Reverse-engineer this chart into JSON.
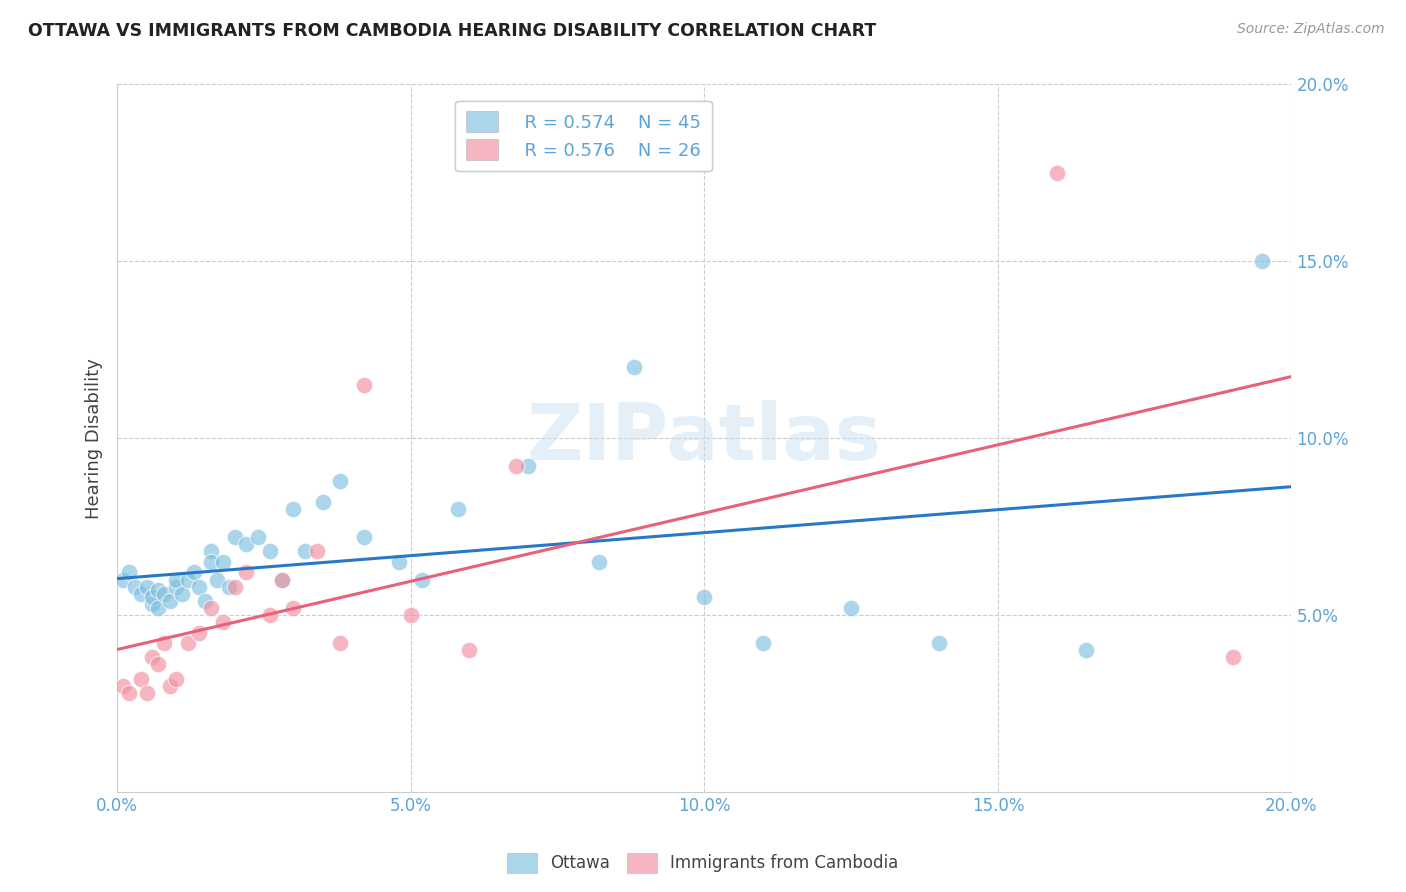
{
  "title": "OTTAWA VS IMMIGRANTS FROM CAMBODIA HEARING DISABILITY CORRELATION CHART",
  "source": "Source: ZipAtlas.com",
  "ylabel": "Hearing Disability",
  "xlim": [
    0.0,
    0.2
  ],
  "ylim": [
    0.0,
    0.2
  ],
  "xticks": [
    0.0,
    0.05,
    0.1,
    0.15,
    0.2
  ],
  "yticks": [
    0.05,
    0.1,
    0.15,
    0.2
  ],
  "xticklabels": [
    "0.0%",
    "5.0%",
    "10.0%",
    "15.0%",
    "20.0%"
  ],
  "yticklabels": [
    "5.0%",
    "10.0%",
    "15.0%",
    "20.0%"
  ],
  "ottawa_color": "#7fbfdf",
  "cambodia_color": "#f090a0",
  "trend_blue": "#2878c8",
  "trend_pink": "#e8607a",
  "watermark_color": "#cce0f0",
  "legend_r1": "R = 0.574",
  "legend_n1": "N = 45",
  "legend_r2": "R = 0.576",
  "legend_n2": "N = 26",
  "ottawa_x": [
    0.001,
    0.002,
    0.003,
    0.004,
    0.005,
    0.006,
    0.006,
    0.007,
    0.007,
    0.008,
    0.009,
    0.01,
    0.01,
    0.011,
    0.012,
    0.013,
    0.014,
    0.015,
    0.016,
    0.016,
    0.017,
    0.018,
    0.019,
    0.02,
    0.022,
    0.024,
    0.026,
    0.028,
    0.03,
    0.032,
    0.035,
    0.038,
    0.042,
    0.048,
    0.052,
    0.058,
    0.07,
    0.082,
    0.088,
    0.1,
    0.11,
    0.125,
    0.14,
    0.165,
    0.195
  ],
  "ottawa_y": [
    0.06,
    0.062,
    0.058,
    0.056,
    0.058,
    0.053,
    0.055,
    0.052,
    0.057,
    0.056,
    0.054,
    0.058,
    0.06,
    0.056,
    0.06,
    0.062,
    0.058,
    0.054,
    0.068,
    0.065,
    0.06,
    0.065,
    0.058,
    0.072,
    0.07,
    0.072,
    0.068,
    0.06,
    0.08,
    0.068,
    0.082,
    0.088,
    0.072,
    0.065,
    0.06,
    0.08,
    0.092,
    0.065,
    0.12,
    0.055,
    0.042,
    0.052,
    0.042,
    0.04,
    0.15
  ],
  "cambodia_x": [
    0.001,
    0.002,
    0.004,
    0.005,
    0.006,
    0.007,
    0.008,
    0.009,
    0.01,
    0.012,
    0.014,
    0.016,
    0.018,
    0.02,
    0.022,
    0.026,
    0.028,
    0.03,
    0.034,
    0.038,
    0.042,
    0.05,
    0.06,
    0.068,
    0.16,
    0.19
  ],
  "cambodia_y": [
    0.03,
    0.028,
    0.032,
    0.028,
    0.038,
    0.036,
    0.042,
    0.03,
    0.032,
    0.042,
    0.045,
    0.052,
    0.048,
    0.058,
    0.062,
    0.05,
    0.06,
    0.052,
    0.068,
    0.042,
    0.115,
    0.05,
    0.04,
    0.092,
    0.175,
    0.038
  ],
  "background_color": "#ffffff",
  "grid_color": "#cccccc",
  "tick_color": "#5ba3d9",
  "title_color": "#222222",
  "source_color": "#999999",
  "ylabel_color": "#444444"
}
